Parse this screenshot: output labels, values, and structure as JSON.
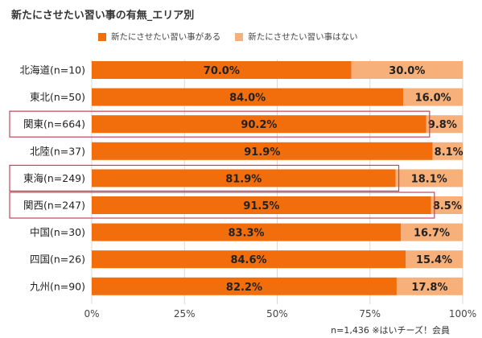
{
  "chart_data": {
    "type": "bar",
    "orientation": "horizontal",
    "stacked": true,
    "title": "新たにさせたい習い事の有無_エリア別",
    "categories": [
      "北海道(n=10)",
      "東北(n=50)",
      "関東(n=664)",
      "北陸(n=37)",
      "東海(n=249)",
      "関西(n=247)",
      "中国(n=30)",
      "四国(n=26)",
      "九州(n=90)"
    ],
    "series": [
      {
        "name": "新たにさせたい習い事がある",
        "values": [
          70.0,
          84.0,
          90.2,
          91.9,
          81.9,
          91.5,
          83.3,
          84.6,
          82.2
        ],
        "labels": [
          "70.0%",
          "84.0%",
          "90.2%",
          "91.9%",
          "81.9%",
          "91.5%",
          "83.3%",
          "84.6%",
          "82.2%"
        ]
      },
      {
        "name": "新たにさせたい習い事はない",
        "values": [
          30.0,
          16.0,
          9.8,
          8.1,
          18.1,
          8.5,
          16.7,
          15.4,
          17.8
        ],
        "labels": [
          "30.0%",
          "16.0%",
          "9.8%",
          "8.1%",
          "18.1%",
          "8.5%",
          "16.7%",
          "15.4%",
          "17.8%"
        ]
      }
    ],
    "xlim": [
      0,
      100
    ],
    "xticks": [
      "0%",
      "25%",
      "50%",
      "75%",
      "100%"
    ],
    "highlighted_categories": [
      "関東(n=664)",
      "東海(n=249)",
      "関西(n=247)"
    ],
    "grid": "vertical",
    "legend_position": "top"
  },
  "colors": {
    "series1": "#f26d0c",
    "series2": "#f7b07a",
    "highlight_box": "#c0485a",
    "grid": "#d8d8d8"
  },
  "source_note": "n=1,436 ※はいチーズ！会員"
}
